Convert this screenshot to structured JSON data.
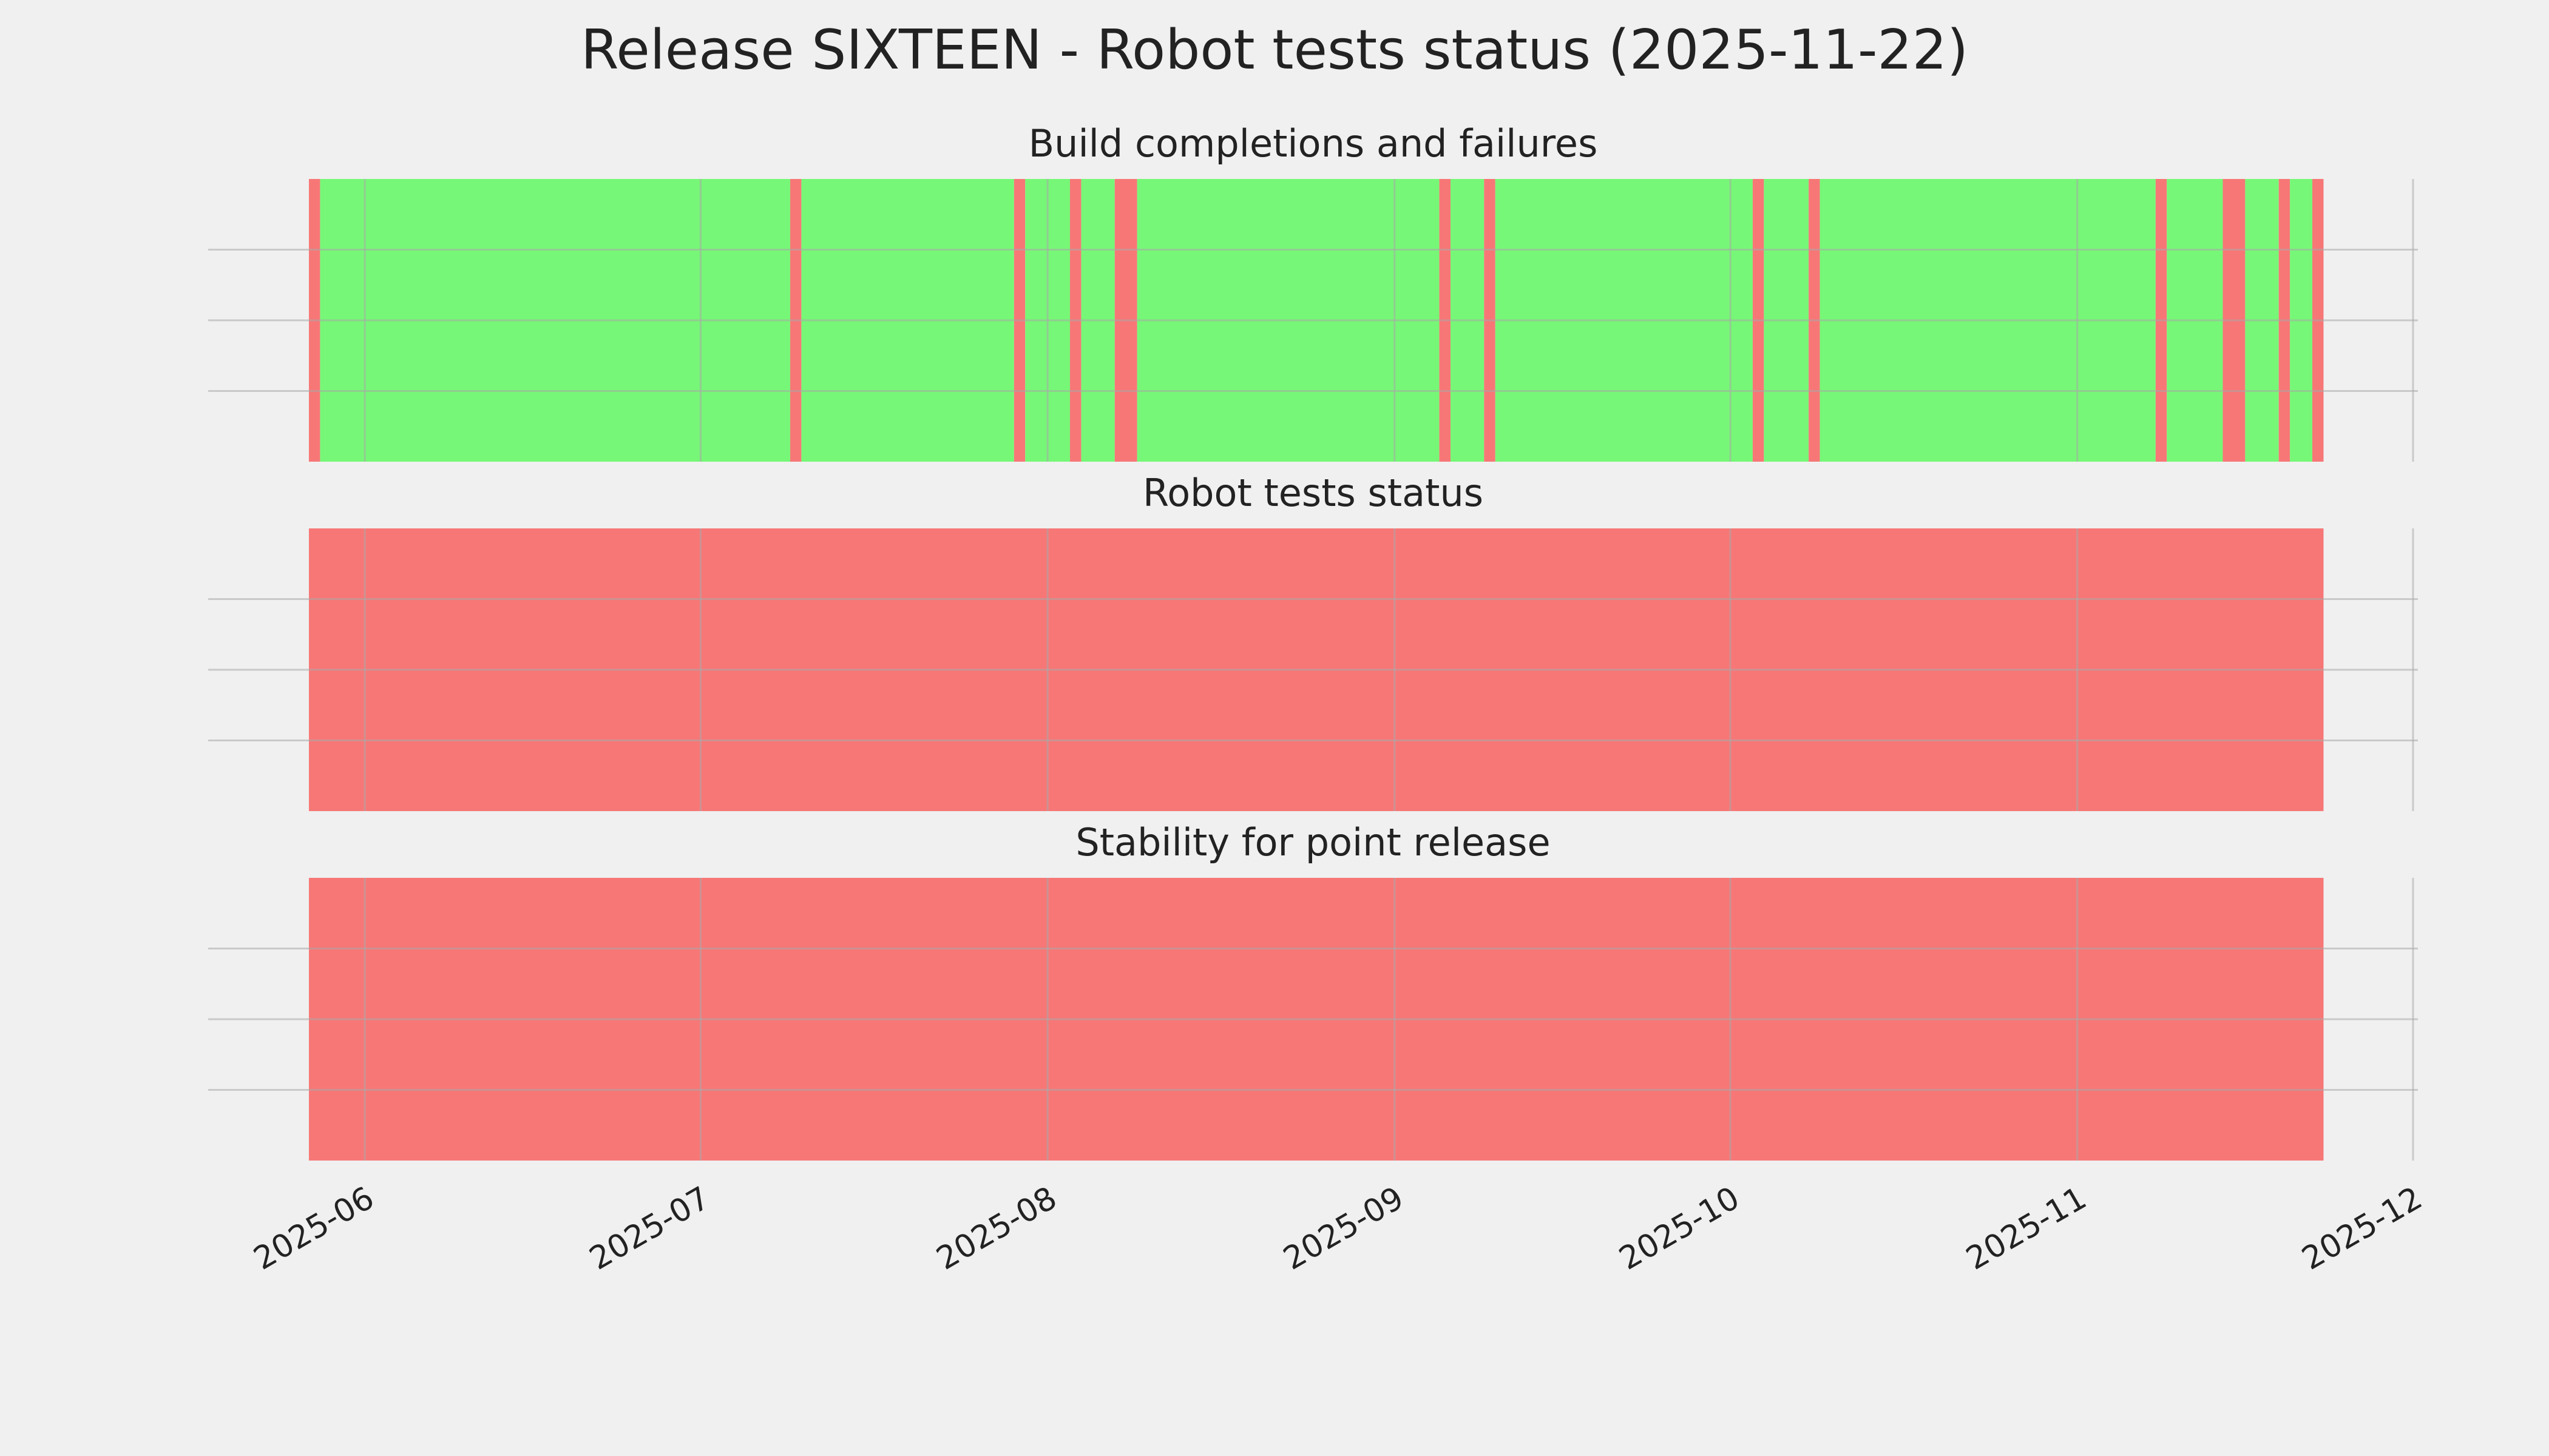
{
  "chart_data": {
    "type": "timeline",
    "title": "Release SIXTEEN - Robot tests status (2025-11-22)",
    "xlim": [
      "2025-05-18",
      "2025-12-01"
    ],
    "xticks": [
      {
        "value": "2025-06-01",
        "label": "2025-06"
      },
      {
        "value": "2025-07-01",
        "label": "2025-07"
      },
      {
        "value": "2025-08-01",
        "label": "2025-08"
      },
      {
        "value": "2025-09-01",
        "label": "2025-09"
      },
      {
        "value": "2025-10-01",
        "label": "2025-10"
      },
      {
        "value": "2025-11-01",
        "label": "2025-11"
      },
      {
        "value": "2025-12-01",
        "label": "2025-12"
      }
    ],
    "ylim": [
      0,
      1
    ],
    "yticks": [
      0.25,
      0.5,
      0.75
    ],
    "grid": true,
    "colors": {
      "pass": "#77f777",
      "fail": "#f77777"
    },
    "panels": [
      {
        "title": "Build completions and failures",
        "spans": [
          {
            "start": "2025-05-27",
            "end": "2025-05-28",
            "status": "fail"
          },
          {
            "start": "2025-05-28",
            "end": "2025-07-09",
            "status": "pass"
          },
          {
            "start": "2025-07-09",
            "end": "2025-07-10",
            "status": "fail"
          },
          {
            "start": "2025-07-10",
            "end": "2025-07-29",
            "status": "pass"
          },
          {
            "start": "2025-07-29",
            "end": "2025-07-30",
            "status": "fail"
          },
          {
            "start": "2025-07-30",
            "end": "2025-08-03",
            "status": "pass"
          },
          {
            "start": "2025-08-03",
            "end": "2025-08-04",
            "status": "fail"
          },
          {
            "start": "2025-08-04",
            "end": "2025-08-07",
            "status": "pass"
          },
          {
            "start": "2025-08-07",
            "end": "2025-08-09",
            "status": "fail"
          },
          {
            "start": "2025-08-09",
            "end": "2025-09-05",
            "status": "pass"
          },
          {
            "start": "2025-09-05",
            "end": "2025-09-06",
            "status": "fail"
          },
          {
            "start": "2025-09-06",
            "end": "2025-09-09",
            "status": "pass"
          },
          {
            "start": "2025-09-09",
            "end": "2025-09-10",
            "status": "fail"
          },
          {
            "start": "2025-09-10",
            "end": "2025-10-03",
            "status": "pass"
          },
          {
            "start": "2025-10-03",
            "end": "2025-10-04",
            "status": "fail"
          },
          {
            "start": "2025-10-04",
            "end": "2025-10-08",
            "status": "pass"
          },
          {
            "start": "2025-10-08",
            "end": "2025-10-09",
            "status": "fail"
          },
          {
            "start": "2025-10-09",
            "end": "2025-11-08",
            "status": "pass"
          },
          {
            "start": "2025-11-08",
            "end": "2025-11-09",
            "status": "fail"
          },
          {
            "start": "2025-11-09",
            "end": "2025-11-14",
            "status": "pass"
          },
          {
            "start": "2025-11-14",
            "end": "2025-11-16",
            "status": "fail"
          },
          {
            "start": "2025-11-16",
            "end": "2025-11-19",
            "status": "pass"
          },
          {
            "start": "2025-11-19",
            "end": "2025-11-20",
            "status": "fail"
          },
          {
            "start": "2025-11-20",
            "end": "2025-11-22",
            "status": "pass"
          },
          {
            "start": "2025-11-22",
            "end": "2025-11-23",
            "status": "fail"
          }
        ]
      },
      {
        "title": "Robot tests status",
        "spans": [
          {
            "start": "2025-05-27",
            "end": "2025-11-23",
            "status": "fail"
          }
        ]
      },
      {
        "title": "Stability for point release",
        "spans": [
          {
            "start": "2025-05-27",
            "end": "2025-11-23",
            "status": "fail"
          }
        ]
      }
    ]
  }
}
